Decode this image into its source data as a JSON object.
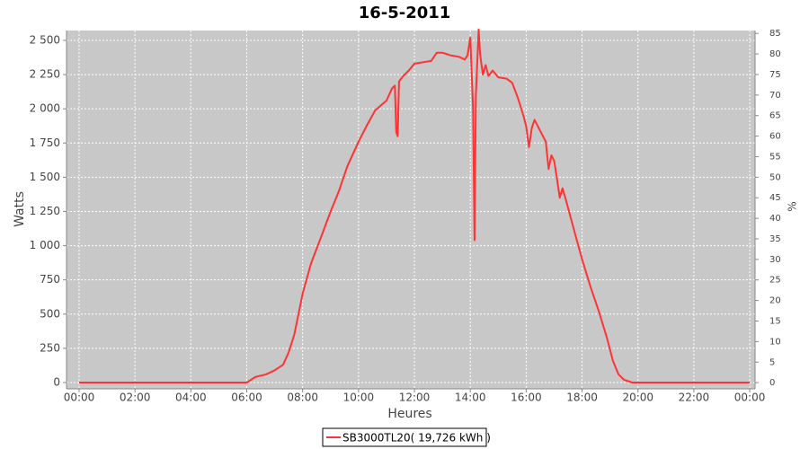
{
  "chart_data": {
    "type": "line",
    "title": "16-5-2011",
    "xlabel": "Heures",
    "ylabel": "Watts",
    "y2label": "%",
    "x": [
      0,
      6.0,
      6.3,
      6.7,
      7.0,
      7.3,
      7.5,
      7.7,
      8.0,
      8.3,
      8.6,
      9.0,
      9.3,
      9.6,
      10.0,
      10.3,
      10.6,
      11.0,
      11.2,
      11.3,
      11.35,
      11.4,
      11.45,
      11.6,
      11.8,
      12.0,
      12.3,
      12.6,
      12.8,
      13.0,
      13.3,
      13.6,
      13.8,
      13.9,
      14.0,
      14.1,
      14.15,
      14.2,
      14.3,
      14.35,
      14.45,
      14.55,
      14.65,
      14.8,
      15.0,
      15.3,
      15.5,
      15.7,
      15.9,
      16.0,
      16.1,
      16.2,
      16.3,
      16.5,
      16.7,
      16.8,
      16.9,
      17.0,
      17.1,
      17.2,
      17.3,
      17.4,
      17.6,
      17.8,
      18.0,
      18.3,
      18.6,
      18.9,
      19.1,
      19.3,
      19.5,
      19.8,
      24
    ],
    "series": [
      {
        "name": "SB3000TL20( 19,726 kWh )",
        "color": "#ff3333",
        "values": [
          0,
          0,
          40,
          60,
          90,
          130,
          220,
          350,
          650,
          870,
          1030,
          1250,
          1400,
          1580,
          1760,
          1880,
          1990,
          2060,
          2150,
          2170,
          1830,
          1800,
          2200,
          2240,
          2280,
          2330,
          2340,
          2350,
          2410,
          2410,
          2390,
          2380,
          2360,
          2390,
          2520,
          2000,
          1040,
          2100,
          2580,
          2400,
          2250,
          2320,
          2240,
          2280,
          2230,
          2220,
          2190,
          2080,
          1950,
          1870,
          1720,
          1860,
          1920,
          1840,
          1760,
          1560,
          1660,
          1620,
          1490,
          1350,
          1420,
          1350,
          1200,
          1050,
          900,
          700,
          520,
          320,
          160,
          60,
          20,
          0,
          0
        ]
      }
    ],
    "xlim": [
      -0.45,
      24.19
    ],
    "xticks": [
      {
        "value": 0,
        "label": "00:00"
      },
      {
        "value": 2,
        "label": "02:00"
      },
      {
        "value": 4,
        "label": "04:00"
      },
      {
        "value": 6,
        "label": "06:00"
      },
      {
        "value": 8,
        "label": "08:00"
      },
      {
        "value": 10,
        "label": "10:00"
      },
      {
        "value": 12,
        "label": "12:00"
      },
      {
        "value": 14,
        "label": "14:00"
      },
      {
        "value": 16,
        "label": "16:00"
      },
      {
        "value": 18,
        "label": "18:00"
      },
      {
        "value": 20,
        "label": "20:00"
      },
      {
        "value": 22,
        "label": "22:00"
      },
      {
        "value": 24,
        "label": "00:00"
      }
    ],
    "ylim": [
      -46,
      2572
    ],
    "yticks": [
      0,
      250,
      500,
      750,
      {
        "value": 1000,
        "label": "1 000"
      },
      {
        "value": 1250,
        "label": "1 250"
      },
      {
        "value": 1500,
        "label": "1 500"
      },
      {
        "value": 1750,
        "label": "1 750"
      },
      {
        "value": 2000,
        "label": "2 000"
      },
      {
        "value": 2250,
        "label": "2 250"
      },
      {
        "value": 2500,
        "label": "2 500"
      }
    ],
    "y2lim": [
      -1.5,
      85.7
    ],
    "y2ticks": [
      0,
      5,
      10,
      15,
      20,
      25,
      30,
      35,
      40,
      45,
      50,
      55,
      60,
      65,
      70,
      75,
      80,
      85
    ],
    "grid": true
  }
}
